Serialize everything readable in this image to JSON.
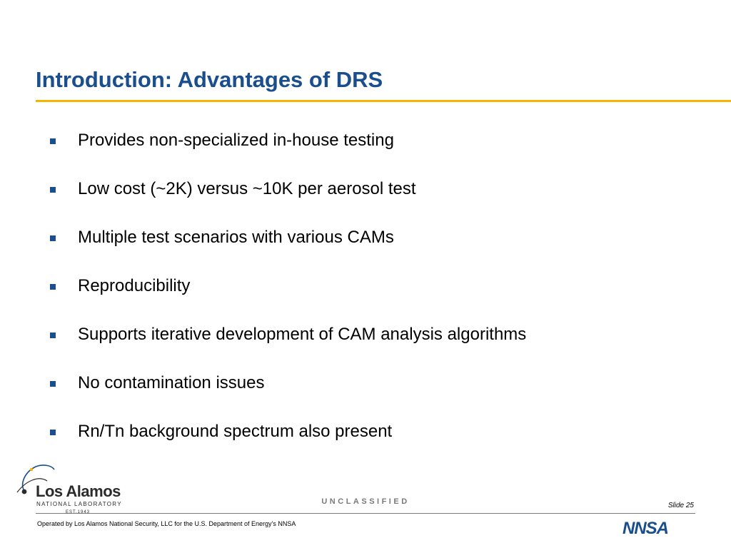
{
  "slide": {
    "title": "Introduction: Advantages of DRS",
    "bullets": [
      "Provides non-specialized in-house testing",
      "Low cost (~2K) versus ~10K per aerosol test",
      "Multiple test scenarios with various CAMs",
      "Reproducibility",
      "Supports iterative development of CAM analysis algorithms",
      "No contamination issues",
      "Rn/Tn background spectrum also present"
    ]
  },
  "footer": {
    "logo": {
      "name": "Los Alamos",
      "subtitle": "NATIONAL LABORATORY",
      "established": "EST.1943"
    },
    "classification": "UNCLASSIFIED",
    "slide_number": "Slide 25",
    "operated_by": "Operated by Los Alamos National Security, LLC for the U.S. Department of Energy’s NNSA",
    "nnsa_logo": "NNSA"
  },
  "colors": {
    "title": "#1a4e8c",
    "accent_rule": "#f5b400",
    "bullet": "#1a4e8c",
    "footer_gray": "#7a7a7a"
  },
  "icons": {
    "bullet": "square-bullet-icon",
    "logo_mark": "atom-orbit-icon"
  }
}
